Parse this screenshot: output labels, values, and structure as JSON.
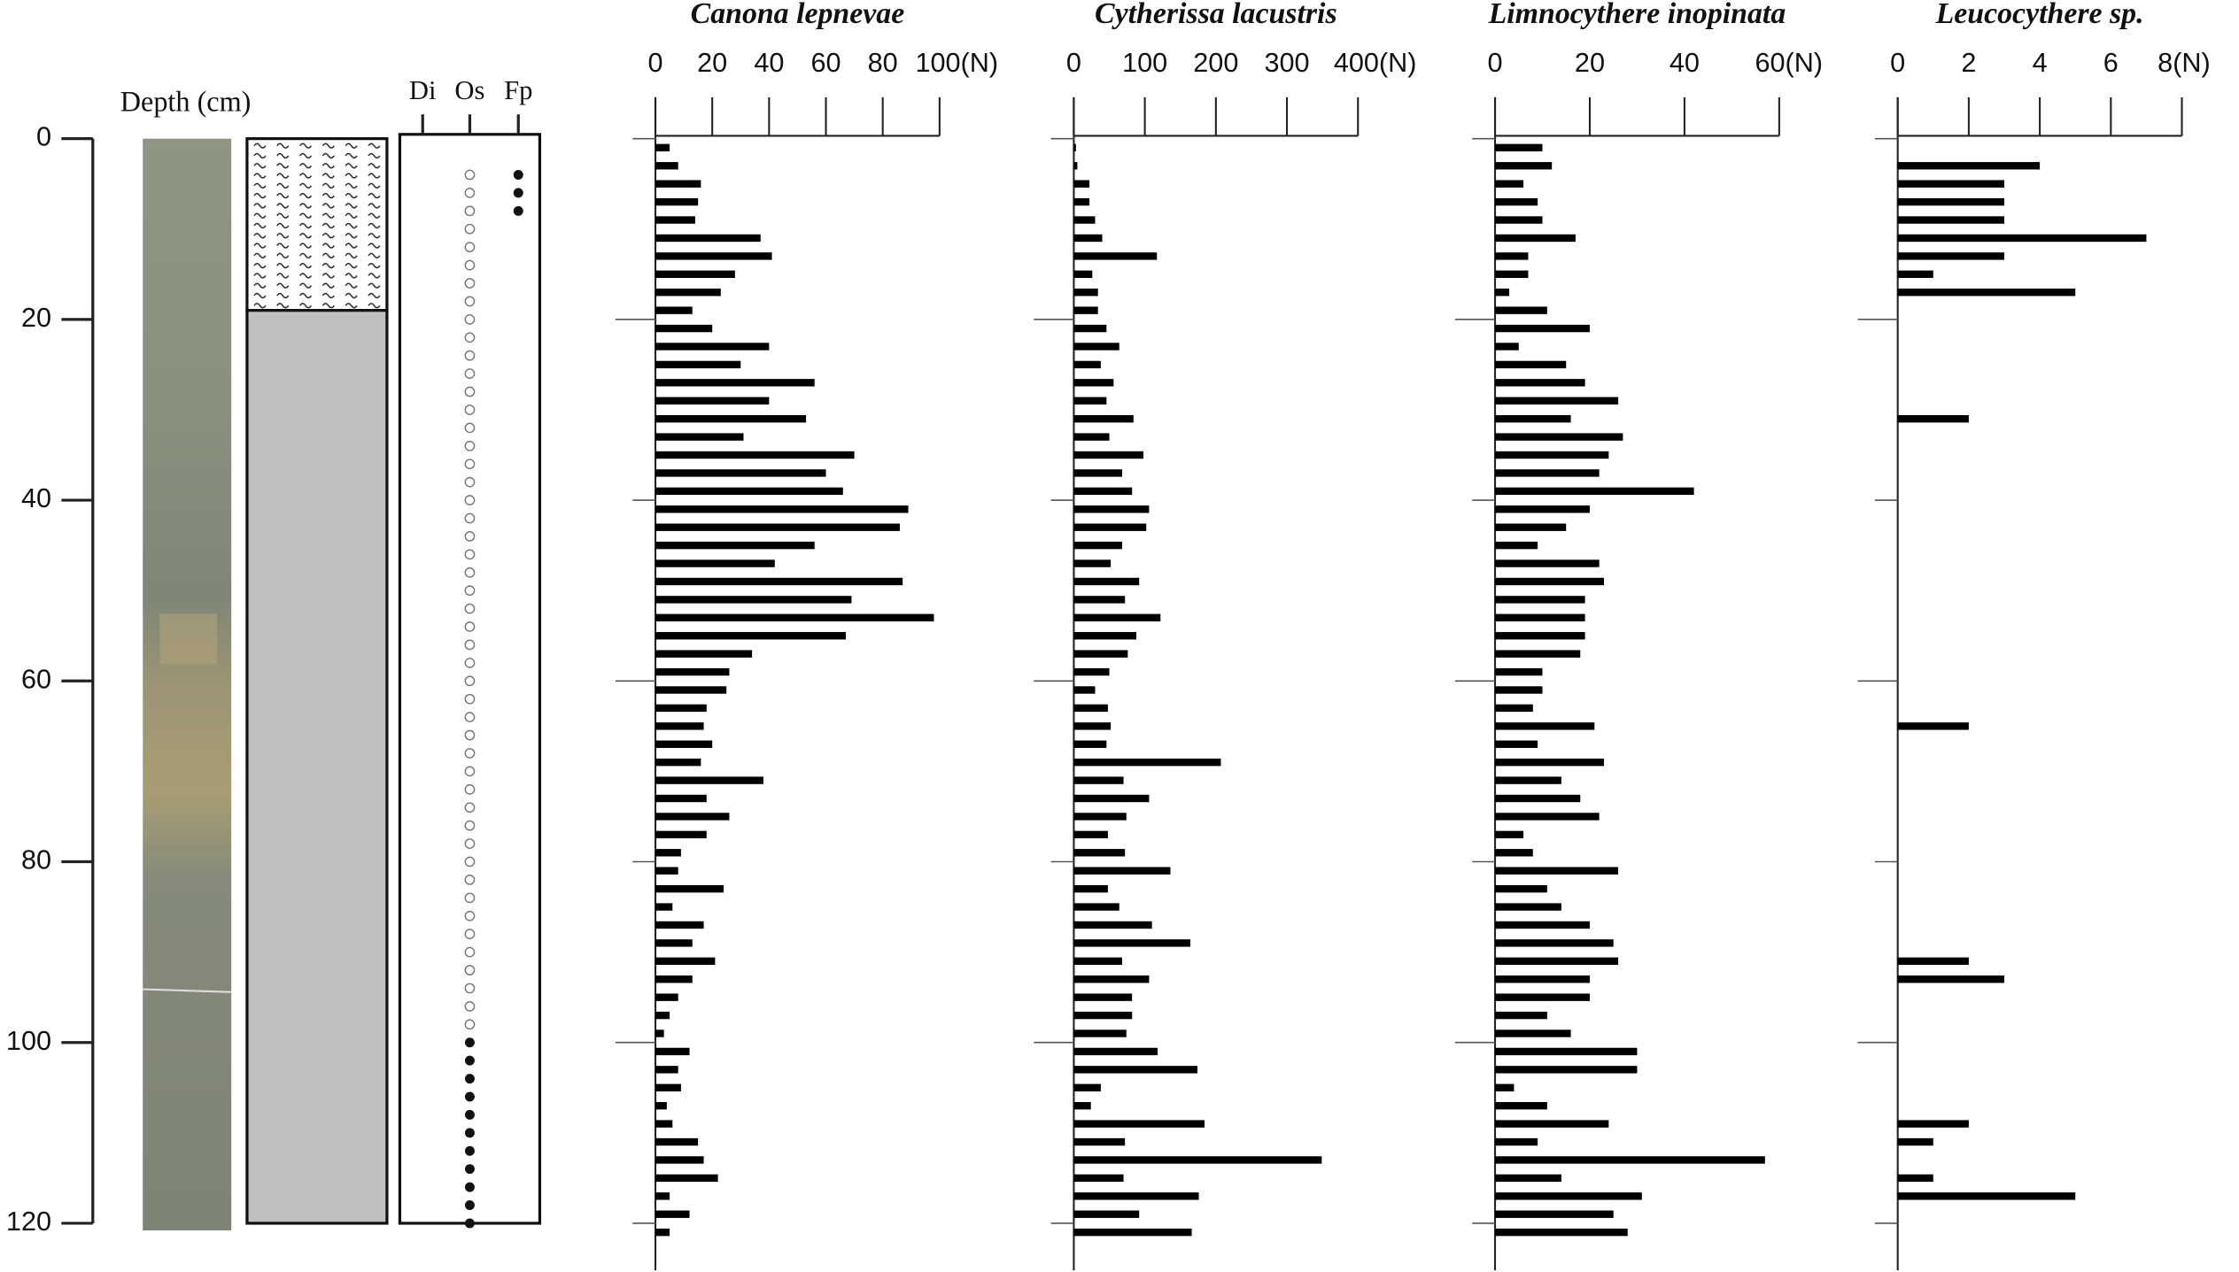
{
  "depth_axis": {
    "label": "Depth (cm)",
    "ylim": [
      0,
      120
    ],
    "yticks": [
      0,
      20,
      40,
      60,
      80,
      100,
      120
    ]
  },
  "lithology": [
    {
      "top": 0,
      "bottom": 19,
      "pattern": "wavy"
    },
    {
      "top": 19,
      "bottom": 120,
      "color": "#c0c0c0"
    }
  ],
  "indicators": {
    "columns": [
      {
        "label": "Di"
      },
      {
        "label": "Os",
        "open": [
          4,
          6,
          8,
          10,
          12,
          14,
          16,
          18,
          20,
          22,
          24,
          26,
          28,
          30,
          32,
          34,
          36,
          38,
          40,
          42,
          44,
          46,
          48,
          50,
          52,
          54,
          56,
          58,
          60,
          62,
          64,
          66,
          68,
          70,
          72,
          74,
          76,
          78,
          80,
          82,
          84,
          86,
          88,
          90,
          92,
          94,
          96,
          98
        ],
        "filled": [
          100,
          102,
          104,
          106,
          108,
          110,
          112,
          114,
          116,
          118,
          120
        ]
      },
      {
        "label": "Fp",
        "filled": [
          4,
          6,
          8
        ]
      }
    ]
  },
  "chart_data": [
    {
      "type": "bar",
      "orientation": "horizontal",
      "title": "Canona lepnevae",
      "color": "#000000",
      "x": [
        1,
        3,
        5,
        7,
        9,
        11,
        13,
        15,
        17,
        19,
        21,
        23,
        25,
        27,
        29,
        31,
        33,
        35,
        37,
        39,
        41,
        43,
        45,
        47,
        49,
        51,
        53,
        55,
        57,
        59,
        61,
        63,
        65,
        67,
        69,
        71,
        73,
        75,
        77,
        79,
        81,
        83,
        85,
        87,
        89,
        91,
        93,
        95,
        97,
        99,
        101,
        103,
        105,
        107,
        109,
        111,
        113,
        115,
        117,
        119,
        121
      ],
      "values": [
        5,
        8,
        16,
        15,
        14,
        37,
        41,
        28,
        23,
        13,
        20,
        40,
        30,
        56,
        40,
        53,
        31,
        70,
        60,
        66,
        89,
        86,
        56,
        42,
        87,
        69,
        98,
        67,
        34,
        26,
        25,
        18,
        17,
        20,
        16,
        38,
        18,
        26,
        18,
        9,
        8,
        24,
        6,
        17,
        13,
        21,
        13,
        8,
        5,
        3,
        12,
        8,
        9,
        4,
        6,
        15,
        17,
        22,
        5,
        12,
        5
      ],
      "xlim": [
        0,
        100
      ],
      "xticks": [
        0,
        20,
        40,
        60,
        80,
        {
          "value": 100,
          "label": "100(N)"
        }
      ]
    },
    {
      "type": "bar",
      "orientation": "horizontal",
      "title": "Cytherissa lacustris",
      "color": "#000000",
      "x": [
        1,
        3,
        5,
        7,
        9,
        11,
        13,
        15,
        17,
        19,
        21,
        23,
        25,
        27,
        29,
        31,
        33,
        35,
        37,
        39,
        41,
        43,
        45,
        47,
        49,
        51,
        53,
        55,
        57,
        59,
        61,
        63,
        65,
        67,
        69,
        71,
        73,
        75,
        77,
        79,
        81,
        83,
        85,
        87,
        89,
        91,
        93,
        95,
        97,
        99,
        101,
        103,
        105,
        107,
        109,
        111,
        113,
        115,
        117,
        119,
        121
      ],
      "values": [
        3,
        5,
        22,
        22,
        30,
        40,
        117,
        26,
        34,
        34,
        46,
        64,
        38,
        56,
        46,
        84,
        50,
        98,
        68,
        82,
        106,
        102,
        68,
        52,
        92,
        72,
        122,
        88,
        76,
        50,
        30,
        48,
        52,
        46,
        207,
        70,
        106,
        74,
        48,
        72,
        136,
        48,
        64,
        110,
        164,
        68,
        106,
        82,
        82,
        74,
        118,
        174,
        38,
        24,
        184,
        72,
        349,
        70,
        176,
        92,
        166
      ],
      "xlim": [
        0,
        400
      ],
      "xticks": [
        0,
        100,
        200,
        300,
        {
          "value": 400,
          "label": "400(N)"
        }
      ]
    },
    {
      "type": "bar",
      "orientation": "horizontal",
      "title": "Limnocythere inopinata",
      "color": "#000000",
      "x": [
        1,
        3,
        5,
        7,
        9,
        11,
        13,
        15,
        17,
        19,
        21,
        23,
        25,
        27,
        29,
        31,
        33,
        35,
        37,
        39,
        41,
        43,
        45,
        47,
        49,
        51,
        53,
        55,
        57,
        59,
        61,
        63,
        65,
        67,
        69,
        71,
        73,
        75,
        77,
        79,
        81,
        83,
        85,
        87,
        89,
        91,
        93,
        95,
        97,
        99,
        101,
        103,
        105,
        107,
        109,
        111,
        113,
        115,
        117,
        119,
        121
      ],
      "values": [
        10,
        12,
        6,
        9,
        10,
        17,
        7,
        7,
        3,
        11,
        20,
        5,
        15,
        19,
        26,
        16,
        27,
        24,
        22,
        42,
        20,
        15,
        9,
        22,
        23,
        19,
        19,
        19,
        18,
        10,
        10,
        8,
        21,
        9,
        23,
        14,
        18,
        22,
        6,
        8,
        26,
        11,
        14,
        20,
        25,
        26,
        20,
        20,
        11,
        16,
        30,
        30,
        4,
        11,
        24,
        9,
        57,
        14,
        31,
        25,
        28
      ],
      "xlim": [
        0,
        60
      ],
      "xticks": [
        0,
        20,
        40,
        {
          "value": 60,
          "label": "60(N)"
        }
      ]
    },
    {
      "type": "bar",
      "orientation": "horizontal",
      "title": "Leucocythere sp.",
      "color": "#000000",
      "x": [
        1,
        3,
        5,
        7,
        9,
        11,
        13,
        15,
        17,
        19,
        21,
        23,
        25,
        27,
        29,
        31,
        33,
        35,
        37,
        39,
        41,
        43,
        45,
        47,
        49,
        51,
        53,
        55,
        57,
        59,
        61,
        63,
        65,
        67,
        69,
        71,
        73,
        75,
        77,
        79,
        81,
        83,
        85,
        87,
        89,
        91,
        93,
        95,
        97,
        99,
        101,
        103,
        105,
        107,
        109,
        111,
        113,
        115,
        117,
        119,
        121
      ],
      "values": [
        0,
        4,
        3,
        3,
        3,
        7,
        3,
        1,
        5,
        0,
        0,
        0,
        0,
        0,
        0,
        2,
        0,
        0,
        0,
        0,
        0,
        0,
        0,
        0,
        0,
        0,
        0,
        0,
        0,
        0,
        0,
        0,
        2,
        0,
        0,
        0,
        0,
        0,
        0,
        0,
        0,
        0,
        0,
        0,
        0,
        2,
        3,
        0,
        0,
        0,
        0,
        0,
        0,
        0,
        2,
        1,
        0,
        1,
        5,
        0,
        0
      ],
      "xlim": [
        0,
        8
      ],
      "xticks": [
        0,
        2,
        4,
        6,
        {
          "value": 8,
          "label": "8(N)"
        }
      ]
    }
  ]
}
